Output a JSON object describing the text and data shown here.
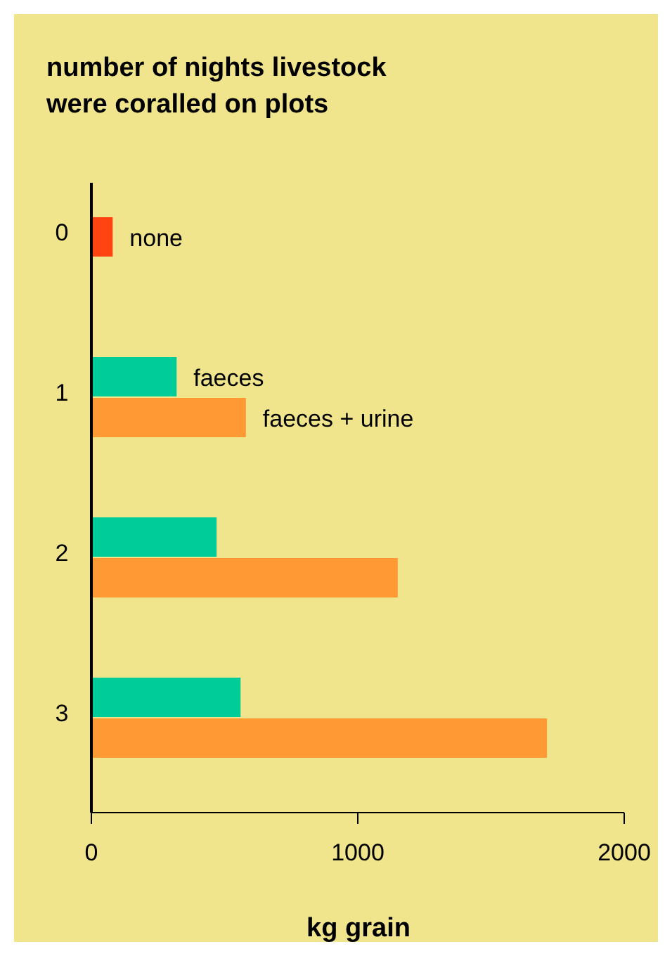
{
  "chart_data": {
    "type": "bar",
    "orientation": "horizontal",
    "title": "number of nights livestock were coralled on plots",
    "xlabel": "kg grain",
    "categories": [
      "0",
      "1",
      "2",
      "3"
    ],
    "series": [
      {
        "name": "none",
        "color": "#ff4411",
        "values": [
          80,
          null,
          null,
          null
        ]
      },
      {
        "name": "faeces",
        "color": "#00cc99",
        "values": [
          null,
          320,
          470,
          560
        ]
      },
      {
        "name": "faeces + urine",
        "color": "#ff9933",
        "values": [
          null,
          580,
          1150,
          1710
        ]
      }
    ],
    "xlim": [
      0,
      2000
    ],
    "xticks": [
      0,
      1000,
      2000
    ]
  }
}
